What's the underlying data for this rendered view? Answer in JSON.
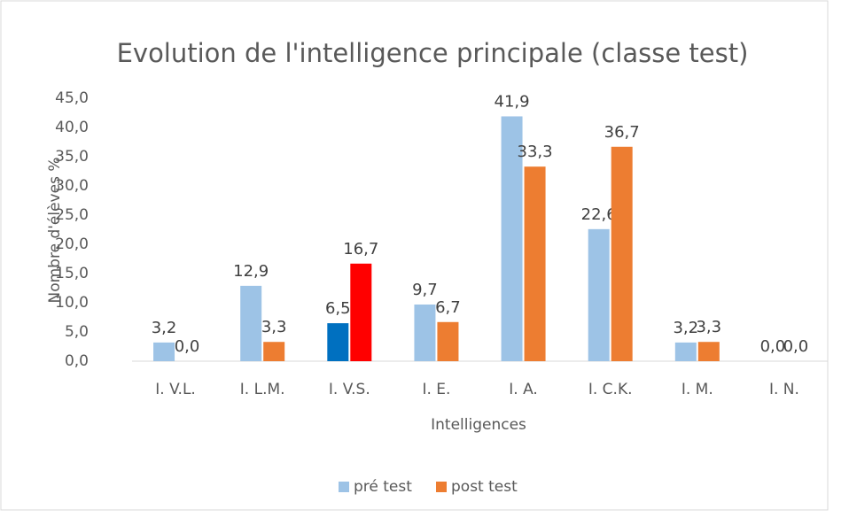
{
  "chart_data": {
    "type": "bar",
    "title": "Evolution de l'intelligence principale (classe test)",
    "x_label": "Intelligences",
    "y_label": "Nombre d'élèves %",
    "categories": [
      "I. V.L.",
      "I. L.M.",
      "I. V.S.",
      "I. E.",
      "I. A.",
      "I. C.K.",
      "I. M.",
      "I. N."
    ],
    "series": [
      {
        "name": "pré test",
        "color": "#9dc3e6",
        "colors": [
          "#9dc3e6",
          "#9dc3e6",
          "#0070c0",
          "#9dc3e6",
          "#9dc3e6",
          "#9dc3e6",
          "#9dc3e6",
          "#9dc3e6"
        ],
        "values": [
          3.2,
          12.9,
          6.5,
          9.7,
          41.9,
          22.6,
          3.2,
          0.0
        ],
        "value_labels": [
          "3,2",
          "12,9",
          "6,5",
          "9,7",
          "41,9",
          "22,6",
          "3,2",
          "0,0"
        ]
      },
      {
        "name": "post test",
        "color": "#ed7d31",
        "colors": [
          "#ed7d31",
          "#ed7d31",
          "#ff0000",
          "#ed7d31",
          "#ed7d31",
          "#ed7d31",
          "#ed7d31",
          "#ed7d31"
        ],
        "values": [
          0.0,
          3.3,
          16.7,
          6.7,
          33.3,
          36.7,
          3.3,
          0.0
        ],
        "value_labels": [
          "0,0",
          "3,3",
          "16,7",
          "6,7",
          "33,3",
          "36,7",
          "3,3",
          "0,0"
        ]
      }
    ],
    "ylim": [
      0,
      45
    ],
    "yticks": [
      {
        "value": 0,
        "label": "0,0"
      },
      {
        "value": 5,
        "label": "5,0"
      },
      {
        "value": 10,
        "label": "10,0"
      },
      {
        "value": 15,
        "label": "15,0"
      },
      {
        "value": 20,
        "label": "20,0"
      },
      {
        "value": 25,
        "label": "25,0"
      },
      {
        "value": 30,
        "label": "30,0"
      },
      {
        "value": 35,
        "label": "35,0"
      },
      {
        "value": 40,
        "label": "40,0"
      },
      {
        "value": 45,
        "label": "45,0"
      }
    ],
    "grid": false,
    "legend_position": "bottom"
  }
}
